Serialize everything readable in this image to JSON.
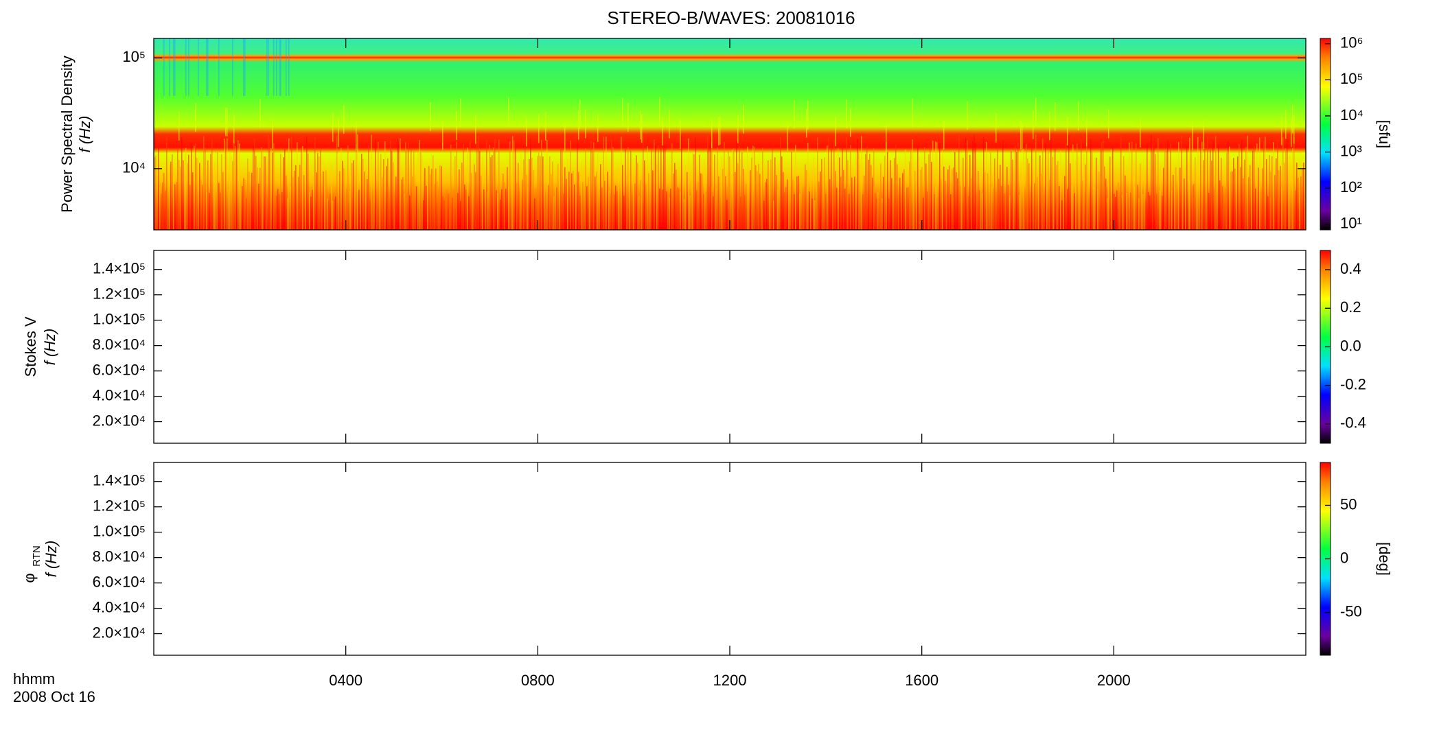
{
  "chart_data": [
    {
      "type": "spectrogram",
      "title": "STEREO-B/WAVES: 20081016",
      "ylabel": [
        "Power Spectral Density",
        "f (Hz)"
      ],
      "ylog": true,
      "ylim": [
        2800,
        150000
      ],
      "yticks": [
        {
          "value": 10000,
          "label": "10⁴"
        },
        {
          "value": 100000,
          "label": "10⁵"
        }
      ],
      "zlog": true,
      "zlim": [
        7,
        1400000
      ],
      "zticks": [
        {
          "value": 10,
          "label": "10¹"
        },
        {
          "value": 100,
          "label": "10²"
        },
        {
          "value": 1000,
          "label": "10³"
        },
        {
          "value": 10000,
          "label": "10⁴"
        },
        {
          "value": 100000,
          "label": "10⁵"
        },
        {
          "value": 1000000,
          "label": "10⁶"
        }
      ],
      "zlabel": "[sfu]"
    },
    {
      "type": "spectrogram",
      "ylabel": [
        "Stokes V",
        "f (Hz)"
      ],
      "ylim": [
        3000,
        155000
      ],
      "yticks": [
        {
          "value": 20000,
          "label": "2.0×10⁴"
        },
        {
          "value": 40000,
          "label": "4.0×10⁴"
        },
        {
          "value": 60000,
          "label": "6.0×10⁴"
        },
        {
          "value": 80000,
          "label": "8.0×10⁴"
        },
        {
          "value": 100000,
          "label": "1.0×10⁵"
        },
        {
          "value": 120000,
          "label": "1.2×10⁵"
        },
        {
          "value": 140000,
          "label": "1.4×10⁵"
        }
      ],
      "zlim": [
        -0.5,
        0.5
      ],
      "zticks": [
        -0.4,
        -0.2,
        {
          "value": 0,
          "label": "0.0"
        },
        0.2,
        0.4
      ]
    },
    {
      "type": "spectrogram",
      "ylabel": [
        "φ",
        "RTN",
        "f (Hz)"
      ],
      "ylim": [
        3000,
        155000
      ],
      "yticks": [
        {
          "value": 20000,
          "label": "2.0×10⁴"
        },
        {
          "value": 40000,
          "label": "4.0×10⁴"
        },
        {
          "value": 60000,
          "label": "6.0×10⁴"
        },
        {
          "value": 80000,
          "label": "8.0×10⁴"
        },
        {
          "value": 100000,
          "label": "1.0×10⁵"
        },
        {
          "value": 120000,
          "label": "1.2×10⁵"
        },
        {
          "value": 140000,
          "label": "1.4×10⁵"
        }
      ],
      "zlim": [
        -90,
        90
      ],
      "zticks": [
        -50,
        0,
        50
      ],
      "zlabel": "[deg]",
      "xlim": [
        0,
        24
      ],
      "xticks": [
        {
          "value": 4,
          "label": "0400"
        },
        {
          "value": 8,
          "label": "0800"
        },
        {
          "value": 12,
          "label": "1200"
        },
        {
          "value": 16,
          "label": "1600"
        },
        {
          "value": 20,
          "label": "2000"
        }
      ],
      "xlabel": [
        "hhmm",
        "2008 Oct 16"
      ]
    }
  ]
}
